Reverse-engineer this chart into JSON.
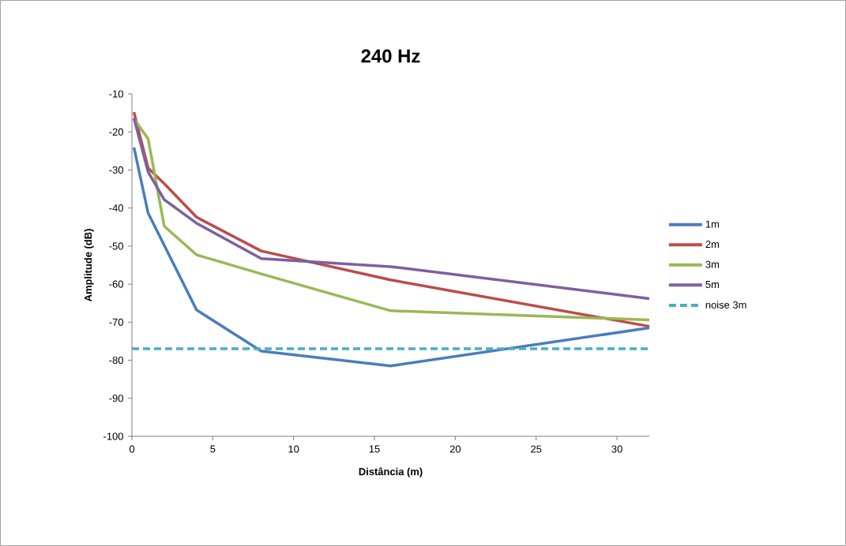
{
  "chart_data": {
    "type": "line",
    "title": "240 Hz",
    "xlabel": "Distância (m)",
    "ylabel": "Amplitude (dB)",
    "x": [
      0.125,
      1,
      2,
      4,
      8,
      16,
      32
    ],
    "series": [
      {
        "name": "1m",
        "color": "#4a7ebb",
        "values": [
          -24.1,
          -41.3,
          -49.8,
          -66.8,
          -77.6,
          -81.5,
          -71.5
        ]
      },
      {
        "name": "2m",
        "color": "#be4b48",
        "values": [
          -14.8,
          -29.5,
          -33.6,
          -42.4,
          -51.3,
          -58.9,
          -71.1
        ]
      },
      {
        "name": "3m",
        "color": "#98b954",
        "values": [
          -16.6,
          -21.8,
          -44.8,
          -52.3,
          -57.3,
          -67,
          -69.4
        ]
      },
      {
        "name": "5m",
        "color": "#7d60a0",
        "values": [
          -16.4,
          -30.5,
          -37.8,
          -44,
          -53.3,
          -55.4,
          -63.8
        ]
      },
      {
        "name": "noise 3m",
        "color": "#4bacc6",
        "x": [
          0,
          32
        ],
        "values": [
          -77,
          -77
        ],
        "line_style": "dashed"
      }
    ],
    "xlim": [
      0,
      32
    ],
    "xticks": [
      0,
      5,
      10,
      15,
      20,
      25,
      30
    ],
    "ylim": [
      -100,
      -10
    ],
    "yticks": [
      -100,
      -90,
      -80,
      -70,
      -60,
      -50,
      -40,
      -30,
      -20,
      -10
    ],
    "grid": false,
    "legend": "right",
    "marker": "none",
    "line_style": "solid"
  }
}
